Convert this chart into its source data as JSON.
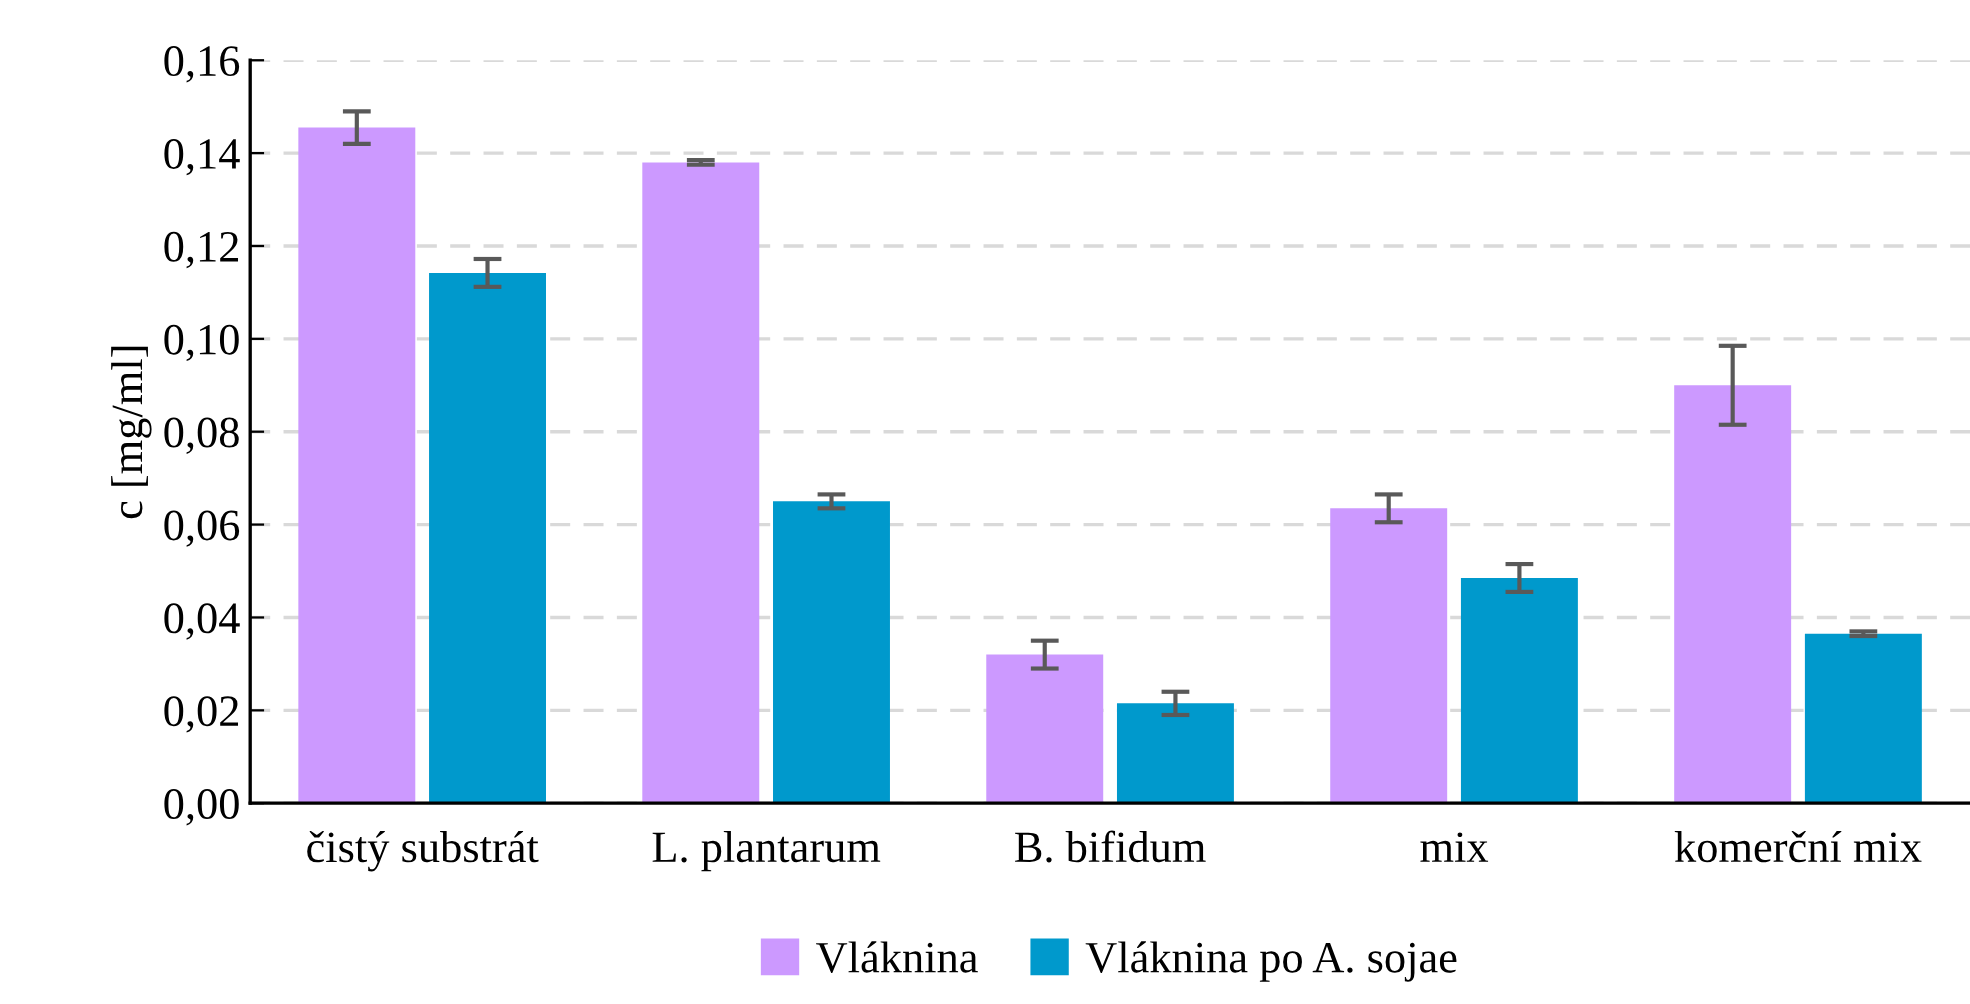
{
  "chart_data": {
    "type": "bar",
    "ylabel": "c [mg/ml]",
    "categories": [
      "čistý substrát",
      "L. plantarum",
      "B. bifidum",
      "mix",
      "komerční mix"
    ],
    "series": [
      {
        "name": "Vláknina",
        "color": "#cc99ff",
        "values": [
          0.1455,
          0.138,
          0.032,
          0.0635,
          0.09
        ],
        "errors": [
          0.0035,
          0.0005,
          0.003,
          0.003,
          0.0085
        ]
      },
      {
        "name": "Vláknina po A. sojae",
        "color": "#0099cc",
        "values": [
          0.1142,
          0.065,
          0.0215,
          0.0485,
          0.0365
        ],
        "errors": [
          0.003,
          0.0015,
          0.0025,
          0.003,
          0.0005
        ]
      }
    ],
    "ylim": [
      0,
      0.16
    ],
    "yticks": [
      {
        "value": 0,
        "label": "0,00"
      },
      {
        "value": 0.02,
        "label": "0,02"
      },
      {
        "value": 0.04,
        "label": "0,04"
      },
      {
        "value": 0.06,
        "label": "0,06"
      },
      {
        "value": 0.08,
        "label": "0,08"
      },
      {
        "value": 0.1,
        "label": "0,10"
      },
      {
        "value": 0.12,
        "label": "0,12"
      },
      {
        "value": 0.14,
        "label": "0,14"
      },
      {
        "value": 0.16,
        "label": "0,16"
      }
    ],
    "grid": "y",
    "legend": "bottom"
  }
}
